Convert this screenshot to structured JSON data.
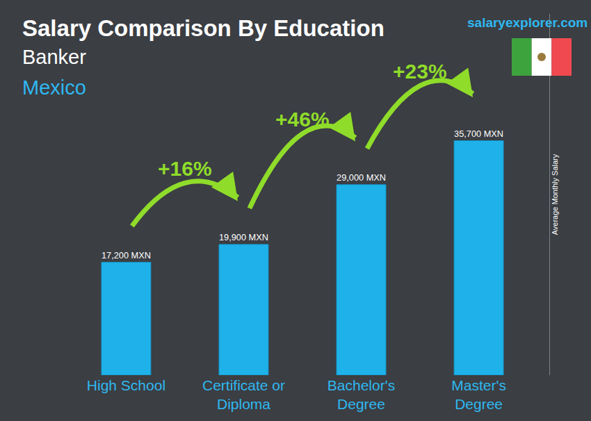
{
  "chart_data": {
    "type": "bar",
    "title": "Salary Comparison By Education",
    "subtitle": [
      "Banker",
      "Mexico"
    ],
    "source": "salaryexplorer.com",
    "y_label": "Average Monthly Salary",
    "categories": [
      "High School",
      "Certificate or Diploma",
      "Bachelor's Degree",
      "Master's Degree"
    ],
    "values": [
      17200,
      19900,
      29000,
      35700
    ],
    "value_labels": [
      "17,200 MXN",
      "19,900 MXN",
      "29,000 MXN",
      "35,700 MXN"
    ],
    "color": "#1fb2ea",
    "ylim": [
      0,
      55000
    ],
    "yticks": [],
    "tick_labels": "x",
    "grid": false,
    "data_labels": true,
    "changes": [
      {
        "from": "High School",
        "to": "Certificate or Diploma",
        "label": "+16%"
      },
      {
        "from": "Certificate or Diploma",
        "to": "Bachelor's Degree",
        "label": "+46%"
      },
      {
        "from": "Bachelor's Degree",
        "to": "Master's Degree",
        "label": "+23%"
      }
    ]
  }
}
